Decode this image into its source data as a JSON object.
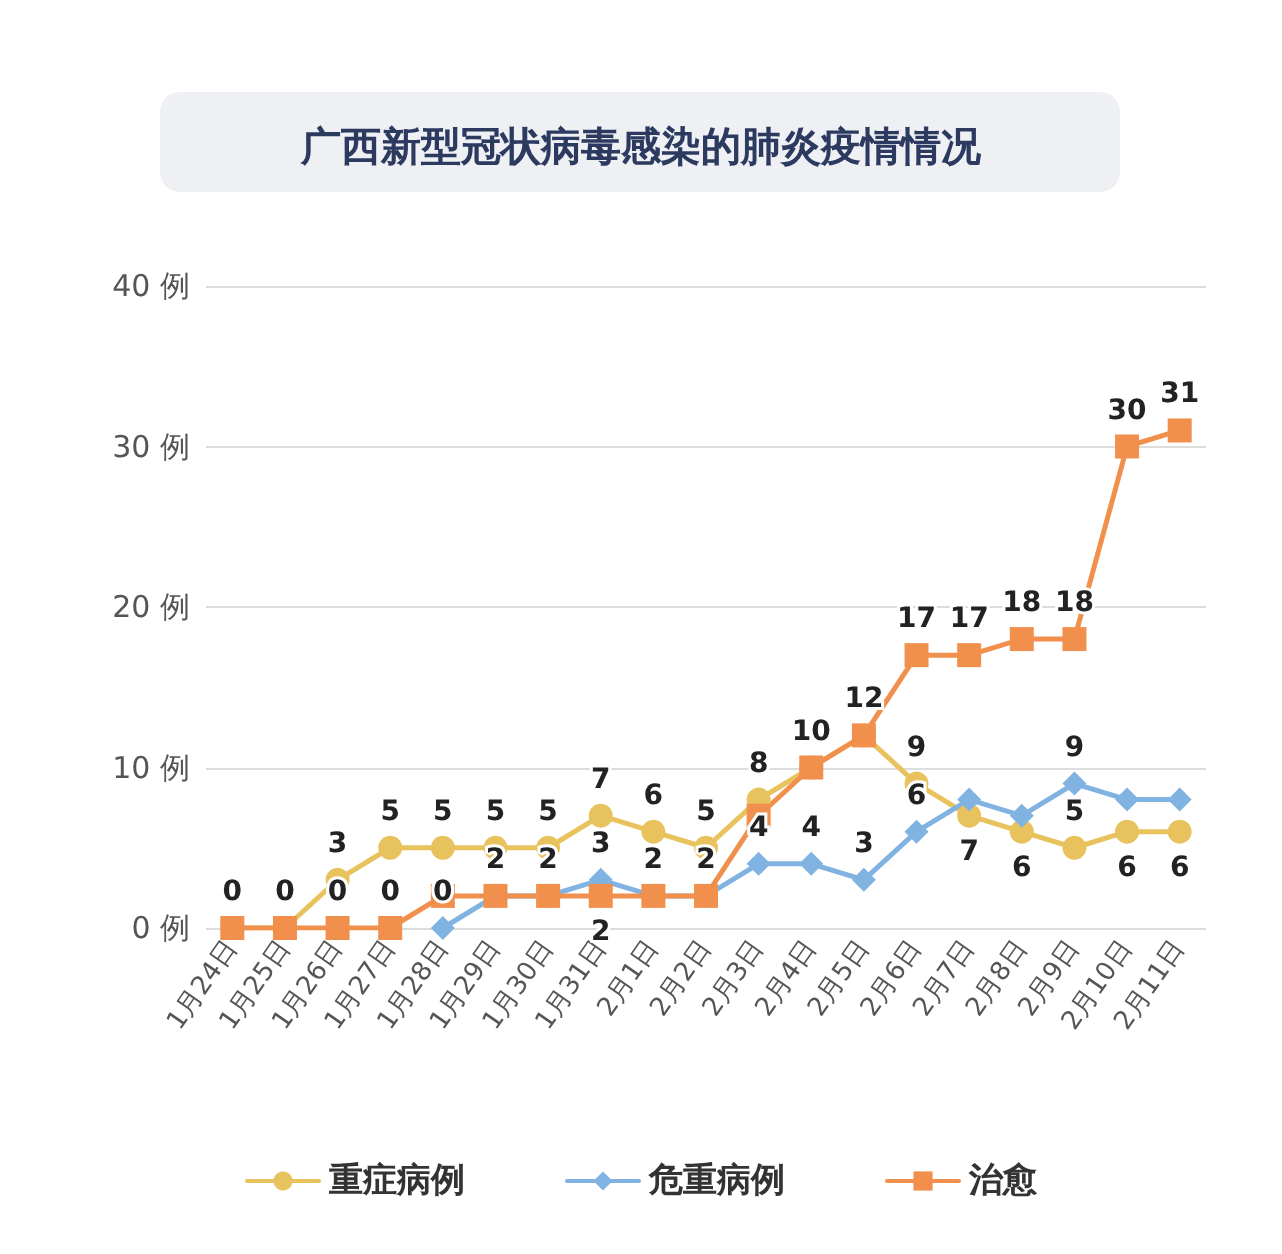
{
  "chart_data": {
    "type": "line",
    "title": "广西新型冠状病毒感染的肺炎疫情情况",
    "categories": [
      "1月24日",
      "1月25日",
      "1月26日",
      "1月27日",
      "1月28日",
      "1月29日",
      "1月30日",
      "1月31日",
      "2月1日",
      "2月2日",
      "2月3日",
      "2月4日",
      "2月5日",
      "2月6日",
      "2月7日",
      "2月8日",
      "2月9日",
      "2月10日",
      "2月11日"
    ],
    "series": [
      {
        "name": "重症病例",
        "color": "#e8c25c",
        "marker": "circle",
        "values": [
          0,
          0,
          3,
          5,
          5,
          5,
          5,
          7,
          6,
          5,
          8,
          10,
          12,
          9,
          7,
          6,
          5,
          6,
          6
        ],
        "value_labels": [
          null,
          null,
          "3",
          "5",
          "5",
          "5",
          "5",
          "7",
          "6",
          "5",
          "8",
          null,
          "12",
          "9",
          "7",
          "6",
          "5",
          "6",
          "6"
        ]
      },
      {
        "name": "危重病例",
        "color": "#80b3e2",
        "marker": "diamond",
        "values": [
          null,
          null,
          null,
          null,
          0,
          2,
          2,
          3,
          2,
          2,
          4,
          4,
          3,
          6,
          8,
          7,
          9,
          8,
          8
        ],
        "value_labels": [
          null,
          null,
          null,
          null,
          "0",
          null,
          null,
          "3",
          null,
          null,
          "4",
          "4",
          "3",
          "6",
          null,
          null,
          "9",
          null,
          null
        ]
      },
      {
        "name": "治愈",
        "color": "#f0904c",
        "marker": "square",
        "values": [
          0,
          0,
          0,
          0,
          2,
          2,
          2,
          2,
          2,
          2,
          7,
          10,
          12,
          17,
          17,
          18,
          18,
          30,
          31
        ],
        "value_labels": [
          "0",
          "0",
          "0",
          "0",
          null,
          "2",
          "2",
          "2",
          "2",
          "2",
          null,
          "10",
          null,
          "17",
          "17",
          "18",
          "18",
          "30",
          "31"
        ]
      }
    ],
    "ylim": [
      0,
      40
    ],
    "yticks": [
      {
        "value": 0,
        "label": "0 例"
      },
      {
        "value": 10,
        "label": "10 例"
      },
      {
        "value": 20,
        "label": "20 例"
      },
      {
        "value": 30,
        "label": "30 例"
      },
      {
        "value": 40,
        "label": "40 例"
      }
    ],
    "grid": "y",
    "legend": "bottom",
    "line_style": "solid"
  }
}
